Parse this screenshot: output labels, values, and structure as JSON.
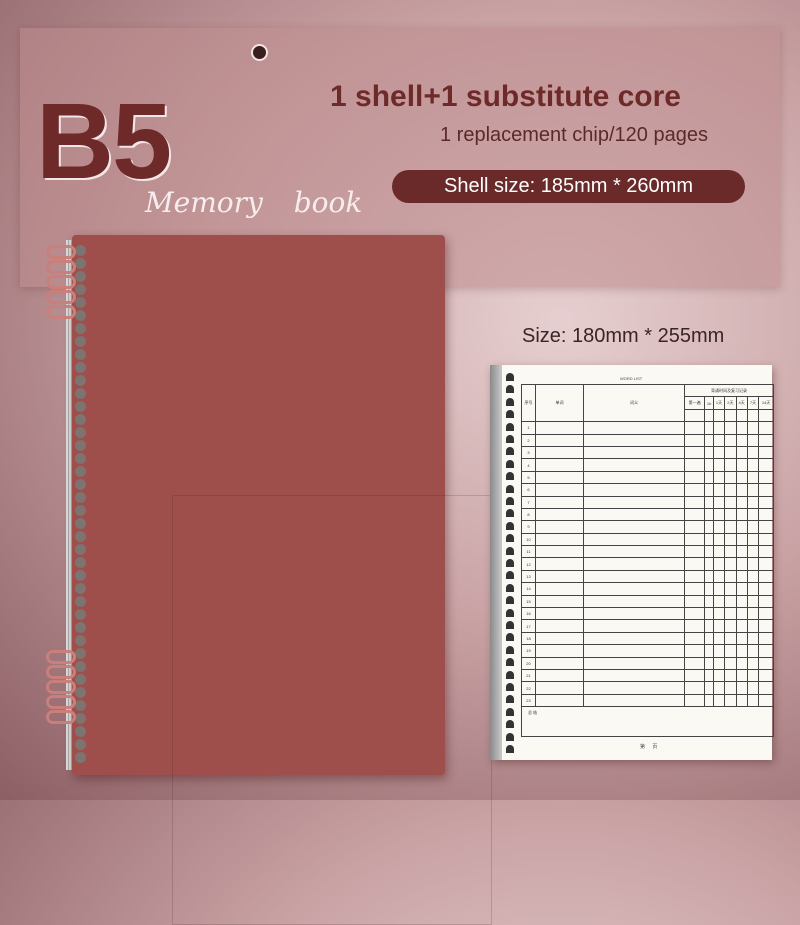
{
  "banner": {
    "size_code": "B5",
    "product_name": "Memory book",
    "title": "1 shell+1 substitute core",
    "subtitle": "1 replacement chip/120 pages",
    "shell_size": "Shell size: 185mm * 260mm"
  },
  "refill": {
    "size_label": "Size: 180mm * 255mm",
    "sheet_title": "WORD LIST",
    "headers": {
      "no": "序号",
      "word": "单词",
      "meaning": "词义",
      "review": "背诵时间及复习记录"
    },
    "review_intervals": [
      "第一遍",
      "1h",
      "1天",
      "2天",
      "4天",
      "7天",
      "14天",
      "30天"
    ],
    "row_numbers": [
      "1",
      "2",
      "3",
      "4",
      "5",
      "6",
      "7",
      "8",
      "9",
      "10",
      "11",
      "12",
      "13",
      "14",
      "15",
      "16",
      "17",
      "18",
      "19",
      "20",
      "21",
      "22",
      "23"
    ],
    "summary_label": "总 结",
    "page_label": "第 页"
  },
  "colors": {
    "accent": "#6b2a2a",
    "cover": "#9e4f4c",
    "paper": "#fbf9f3"
  }
}
